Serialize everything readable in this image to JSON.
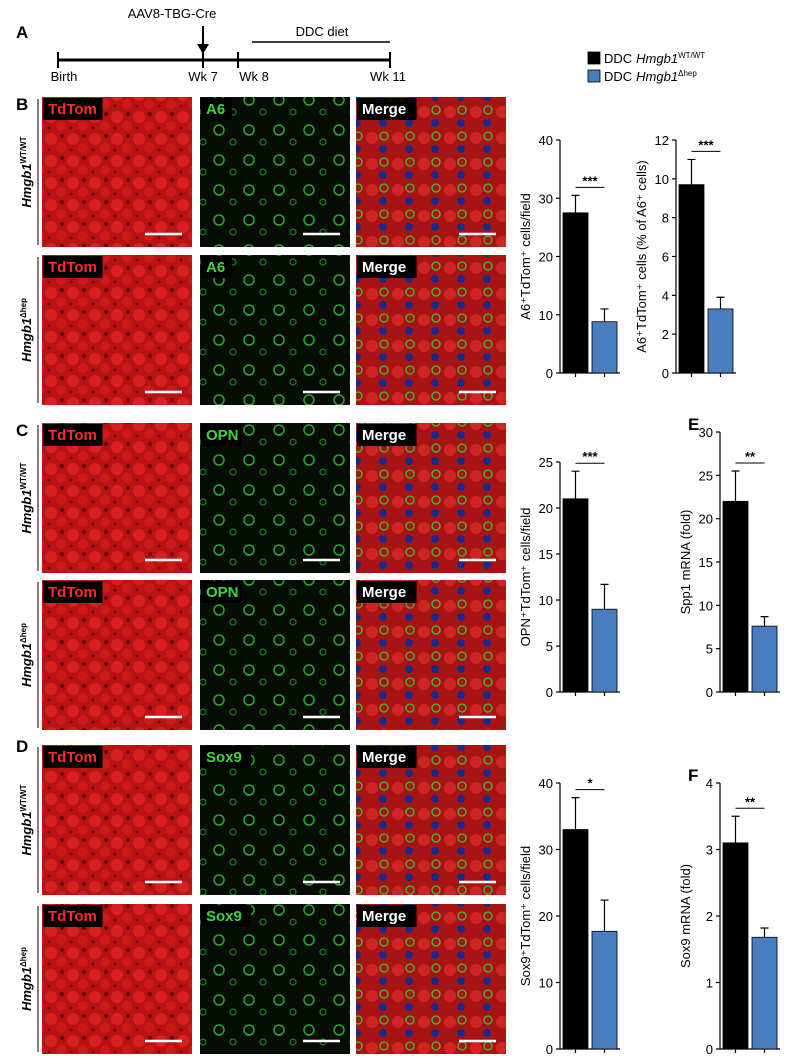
{
  "timeline": {
    "label": "A",
    "injection": "AAV8-TBG-Cre",
    "diet": "DDC diet",
    "ticks": [
      "Birth",
      "Wk 7",
      "Wk 8",
      "Wk 11"
    ]
  },
  "legend": [
    {
      "prefix": "DDC",
      "gene": "Hmgb1",
      "genotype": "WT/WT",
      "color": "#000000"
    },
    {
      "prefix": "DDC",
      "gene": "Hmgb1",
      "genotype": "Δhep",
      "color": "#4a7dc0"
    }
  ],
  "image_panels": [
    {
      "label": "B",
      "rows": [
        {
          "gene": "Hmgb1",
          "genotype": "WT/WT"
        },
        {
          "gene": "Hmgb1",
          "genotype": "Δhep"
        }
      ],
      "stains": [
        "TdTom",
        "A6",
        "Merge"
      ]
    },
    {
      "label": "C",
      "rows": [
        {
          "gene": "Hmgb1",
          "genotype": "WT/WT"
        },
        {
          "gene": "Hmgb1",
          "genotype": "Δhep"
        }
      ],
      "stains": [
        "TdTom",
        "OPN",
        "Merge"
      ]
    },
    {
      "label": "D",
      "rows": [
        {
          "gene": "Hmgb1",
          "genotype": "WT/WT"
        },
        {
          "gene": "Hmgb1",
          "genotype": "Δhep"
        }
      ],
      "stains": [
        "TdTom",
        "Sox9",
        "Merge"
      ]
    }
  ],
  "chart_data": [
    {
      "type": "bar",
      "ylabel": "A6⁺TdTom⁺ cells/field",
      "categories": [
        null,
        null
      ],
      "values": [
        27.5,
        8.8
      ],
      "errors": [
        3,
        2.2
      ],
      "colors": [
        "#000000",
        "#4a7dc0"
      ],
      "ylim": [
        0,
        40
      ],
      "yticks": [
        0,
        10,
        20,
        30,
        40
      ],
      "significance": "***"
    },
    {
      "type": "bar",
      "ylabel": "A6⁺TdTom⁺ cells (% of A6⁺ cells)",
      "categories": [
        null,
        null
      ],
      "values": [
        9.7,
        3.3
      ],
      "errors": [
        1.3,
        0.6
      ],
      "colors": [
        "#000000",
        "#4a7dc0"
      ],
      "ylim": [
        0,
        12
      ],
      "yticks": [
        0,
        2,
        4,
        6,
        8,
        10,
        12
      ],
      "significance": "***"
    },
    {
      "type": "bar",
      "ylabel": "OPN⁺TdTom⁺ cells/field",
      "categories": [
        null,
        null
      ],
      "values": [
        21,
        9
      ],
      "errors": [
        3,
        2.7
      ],
      "colors": [
        "#000000",
        "#4a7dc0"
      ],
      "ylim": [
        0,
        25
      ],
      "yticks": [
        0,
        5,
        10,
        15,
        20,
        25
      ],
      "significance": "***"
    },
    {
      "type": "bar",
      "label": "E",
      "ylabel": "Spp1 mRNA (fold)",
      "categories": [
        null,
        null
      ],
      "values": [
        22,
        7.6
      ],
      "errors": [
        3.5,
        1.1
      ],
      "colors": [
        "#000000",
        "#4a7dc0"
      ],
      "ylim": [
        0,
        30
      ],
      "yticks": [
        0,
        5,
        10,
        15,
        20,
        25,
        30
      ],
      "significance": "**"
    },
    {
      "type": "bar",
      "ylabel": "Sox9⁺TdTom⁺ cells/field",
      "categories": [
        null,
        null
      ],
      "values": [
        33,
        17.7
      ],
      "errors": [
        4.8,
        4.7
      ],
      "colors": [
        "#000000",
        "#4a7dc0"
      ],
      "ylim": [
        0,
        40
      ],
      "yticks": [
        0,
        10,
        20,
        30,
        40
      ],
      "significance": "*"
    },
    {
      "type": "bar",
      "label": "F",
      "ylabel": "Sox9 mRNA (fold)",
      "categories": [
        null,
        null
      ],
      "values": [
        3.1,
        1.68
      ],
      "errors": [
        0.4,
        0.14
      ],
      "colors": [
        "#000000",
        "#4a7dc0"
      ],
      "ylim": [
        0,
        4
      ],
      "yticks": [
        0,
        1,
        2,
        3,
        4
      ],
      "significance": "**"
    }
  ]
}
